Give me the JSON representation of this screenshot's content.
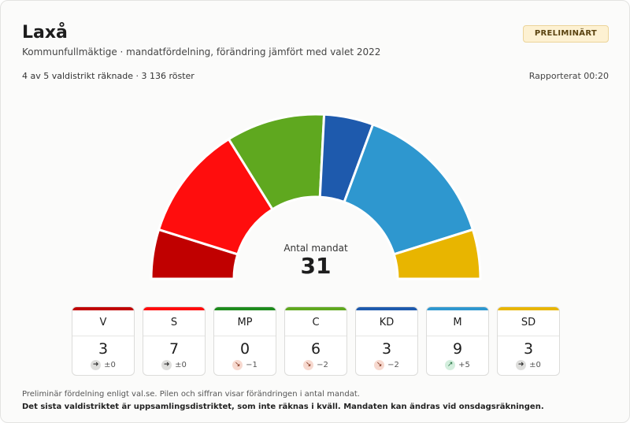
{
  "header": {
    "title": "Laxå",
    "subtitle": "Kommunfullmäktige · mandatfördelning, förändring jämfört med valet 2022",
    "badge": "PRELIMINÄRT",
    "progress": "4 av 5 valdistrikt räknade · 3 136 röster",
    "reported": "Rapporterat 00:20"
  },
  "chamber": {
    "center_label": "Antal mandat",
    "total": "31"
  },
  "parties": [
    {
      "name": "V",
      "seats": 3,
      "seats_text": "3",
      "change": "±0",
      "trend": "flat",
      "color": "#c00000"
    },
    {
      "name": "S",
      "seats": 7,
      "seats_text": "7",
      "change": "±0",
      "trend": "flat",
      "color": "#ff0d0d"
    },
    {
      "name": "MP",
      "seats": 0,
      "seats_text": "0",
      "change": "−1",
      "trend": "down",
      "color": "#1d8b1d"
    },
    {
      "name": "C",
      "seats": 6,
      "seats_text": "6",
      "change": "−2",
      "trend": "down",
      "color": "#5fa81f"
    },
    {
      "name": "KD",
      "seats": 3,
      "seats_text": "3",
      "change": "−2",
      "trend": "down",
      "color": "#1e5aad"
    },
    {
      "name": "M",
      "seats": 9,
      "seats_text": "9",
      "change": "+5",
      "trend": "up",
      "color": "#2e97cf"
    },
    {
      "name": "SD",
      "seats": 3,
      "seats_text": "3",
      "change": "±0",
      "trend": "flat",
      "color": "#e8b500"
    }
  ],
  "footer": {
    "note": "Preliminär fördelning enligt val.se. Pilen och siffran visar förändringen i antal mandat.",
    "warning": "Det sista valdistriktet är uppsamlingsdistriktet, som inte räknas i kväll. Mandaten kan ändras vid onsdagsräkningen."
  }
}
